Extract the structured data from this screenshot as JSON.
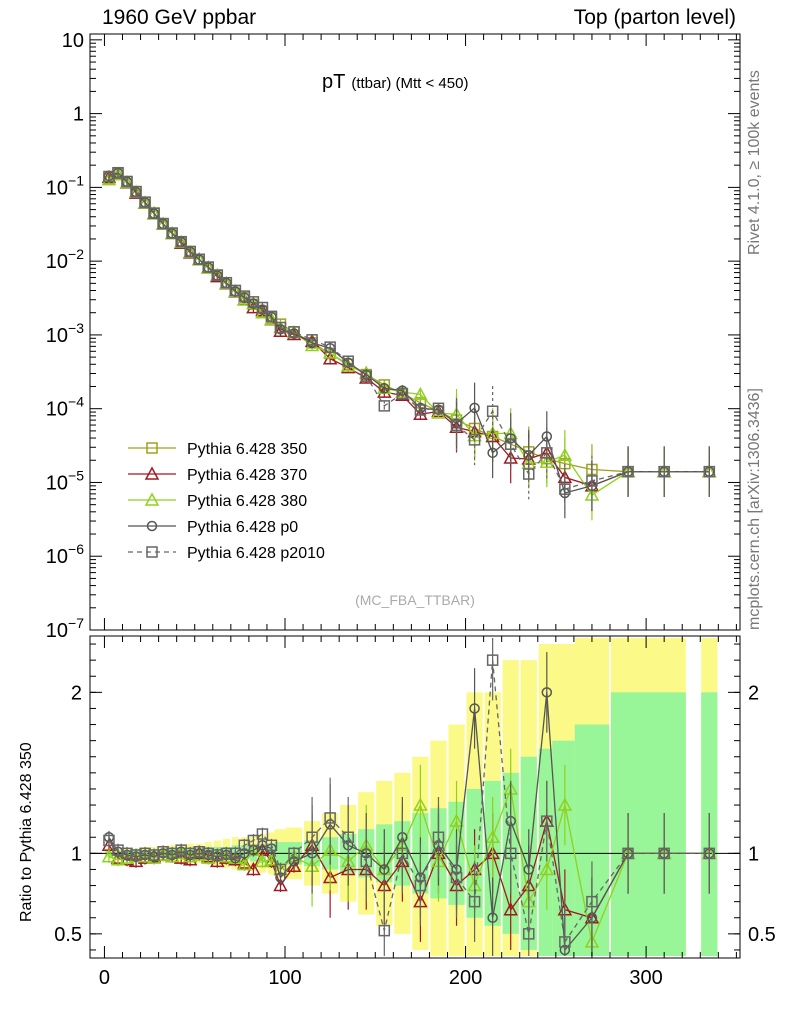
{
  "header": {
    "left": "1960 GeV ppbar",
    "right": "Top (parton level)"
  },
  "side_labels": {
    "rivet": "Rivet 4.1.0, ≥ 100k events",
    "mcplots": "mcplots.cern.ch [arXiv:1306.3436]"
  },
  "colors": {
    "p350": "#a0a021",
    "p370": "#a11922",
    "p380": "#8fd11e",
    "p0": "#555555",
    "p2010": "#666666",
    "band_inner": "#98f598",
    "band_outer": "#fbf988"
  },
  "chart_data": [
    {
      "type": "line",
      "title": "pT",
      "title_sub": "(ttbar) (Mtt < 450)",
      "watermark": "(MC_FBA_TTBAR)",
      "xlim": [
        -8,
        352
      ],
      "ylim": [
        1e-07,
        12
      ],
      "yscale": "log",
      "yticks": [
        {
          "value": 10,
          "label": "10"
        },
        {
          "value": 1,
          "label": "1"
        },
        {
          "value": 0.1,
          "base": "10",
          "exp": "−1"
        },
        {
          "value": 0.01,
          "base": "10",
          "exp": "−2"
        },
        {
          "value": 0.001,
          "base": "10",
          "exp": "−3"
        },
        {
          "value": 0.0001,
          "base": "10",
          "exp": "−4"
        },
        {
          "value": 1e-05,
          "base": "10",
          "exp": "−5"
        },
        {
          "value": 1e-06,
          "base": "10",
          "exp": "−6"
        },
        {
          "value": 1e-07,
          "base": "10",
          "exp": "−7"
        }
      ],
      "legend_position": "lower-left",
      "series": [
        {
          "key": "p350",
          "name": "Pythia 6.428 350",
          "marker": "square",
          "dashed": false
        },
        {
          "key": "p370",
          "name": "Pythia 6.428 370",
          "marker": "triangle",
          "dashed": false
        },
        {
          "key": "p380",
          "name": "Pythia 6.428 380",
          "marker": "triangle",
          "dashed": false
        },
        {
          "key": "p0",
          "name": "Pythia 6.428 p0",
          "marker": "circle",
          "dashed": false
        },
        {
          "key": "p2010",
          "name": "Pythia 6.428 p2010",
          "marker": "square",
          "dashed": true
        }
      ],
      "reference": {
        "x": [
          2.5,
          7.5,
          12.5,
          17.5,
          22.5,
          27.5,
          32.5,
          37.5,
          42.5,
          47.5,
          52.5,
          57.5,
          62.5,
          67.5,
          72.5,
          77.5,
          82.5,
          87.5,
          92.5,
          97.5,
          105,
          115,
          125,
          135,
          145,
          155,
          165,
          175,
          185,
          195,
          205,
          215,
          225,
          235,
          245,
          255,
          270,
          290,
          310,
          335
        ],
        "y": [
          0.13,
          0.155,
          0.12,
          0.088,
          0.063,
          0.045,
          0.032,
          0.024,
          0.018,
          0.0135,
          0.0105,
          0.0083,
          0.0065,
          0.0051,
          0.004,
          0.0032,
          0.0026,
          0.0021,
          0.0017,
          0.0014,
          0.0011,
          0.00078,
          0.00056,
          0.0004,
          0.00029,
          0.00021,
          0.00016,
          0.00012,
          9.2e-05,
          7e-05,
          5.4e-05,
          4.2e-05,
          3.3e-05,
          2.6e-05,
          2.1e-05,
          1.8e-05,
          1.5e-05,
          1.4e-05,
          1.4e-05,
          1.4e-05
        ]
      }
    },
    {
      "type": "line",
      "ylabel": "Ratio to Pythia 6.428 350",
      "xlim": [
        -8,
        352
      ],
      "ylim": [
        0.35,
        2.35
      ],
      "xticks": [
        0,
        100,
        200,
        300
      ],
      "yticks": [
        0.5,
        1,
        2
      ],
      "ratios": {
        "p370": [
          1.05,
          0.97,
          0.96,
          0.95,
          0.97,
          0.98,
          0.99,
          0.98,
          0.97,
          0.96,
          1.0,
          0.98,
          0.95,
          0.97,
          0.96,
          0.94,
          0.9,
          1.02,
          0.95,
          0.8,
          0.92,
          1.05,
          0.85,
          0.9,
          0.9,
          0.8,
          0.95,
          0.7,
          1.0,
          0.8,
          0.9,
          1.0,
          0.65,
          0.8,
          1.2,
          0.65,
          0.6,
          1.0,
          1.0,
          1.0
        ],
        "p380": [
          0.98,
          0.96,
          0.97,
          0.98,
          0.98,
          0.97,
          0.99,
          0.98,
          1.0,
          0.98,
          0.99,
          0.97,
          0.99,
          0.98,
          0.97,
          0.93,
          1.02,
          0.95,
          0.96,
          0.9,
          0.98,
          0.92,
          1.02,
          0.95,
          1.05,
          0.9,
          1.05,
          1.3,
          0.95,
          1.2,
          0.8,
          1.1,
          1.4,
          0.7,
          0.9,
          1.3,
          0.45,
          1.0,
          1.0,
          1.0
        ],
        "p0": [
          1.1,
          1.01,
          0.99,
          0.98,
          0.99,
          0.98,
          1.0,
          0.99,
          1.01,
          0.99,
          1.0,
          0.99,
          0.98,
          0.99,
          0.97,
          1.0,
          1.02,
          1.05,
          1.03,
          0.85,
          0.95,
          1.0,
          1.18,
          1.05,
          1.0,
          0.9,
          1.1,
          0.85,
          1.05,
          0.9,
          1.9,
          0.6,
          1.2,
          0.9,
          2.0,
          0.4,
          0.6,
          1.0,
          1.0,
          1.0
        ],
        "p2010": [
          1.08,
          1.02,
          1.0,
          0.99,
          1.0,
          0.99,
          1.01,
          1.0,
          1.02,
          1.0,
          1.01,
          1.0,
          0.99,
          1.0,
          1.0,
          1.05,
          1.08,
          1.12,
          1.05,
          0.9,
          1.0,
          1.1,
          1.22,
          1.1,
          0.95,
          0.52,
          1.0,
          0.8,
          1.1,
          0.85,
          0.7,
          2.2,
          1.0,
          0.5,
          1.2,
          0.45,
          0.7,
          1.0,
          1.0,
          1.0
        ]
      },
      "band_inner_halfwidth": [
        0.02,
        0.02,
        0.02,
        0.02,
        0.02,
        0.02,
        0.02,
        0.03,
        0.03,
        0.03,
        0.03,
        0.04,
        0.04,
        0.04,
        0.05,
        0.05,
        0.05,
        0.06,
        0.06,
        0.07,
        0.07,
        0.08,
        0.1,
        0.12,
        0.15,
        0.18,
        0.2,
        0.25,
        0.28,
        0.32,
        0.4,
        0.45,
        0.5,
        0.6,
        0.65,
        0.7,
        0.8,
        1.0,
        1.0,
        1.0
      ],
      "band_outer_halfwidth": [
        0.03,
        0.03,
        0.03,
        0.03,
        0.04,
        0.04,
        0.04,
        0.05,
        0.05,
        0.06,
        0.06,
        0.07,
        0.08,
        0.09,
        0.1,
        0.1,
        0.11,
        0.12,
        0.13,
        0.15,
        0.16,
        0.2,
        0.25,
        0.3,
        0.38,
        0.45,
        0.5,
        0.6,
        0.7,
        0.8,
        1.0,
        1.0,
        1.2,
        1.2,
        1.3,
        1.3,
        1.4,
        1.5,
        1.5,
        1.5
      ]
    }
  ]
}
